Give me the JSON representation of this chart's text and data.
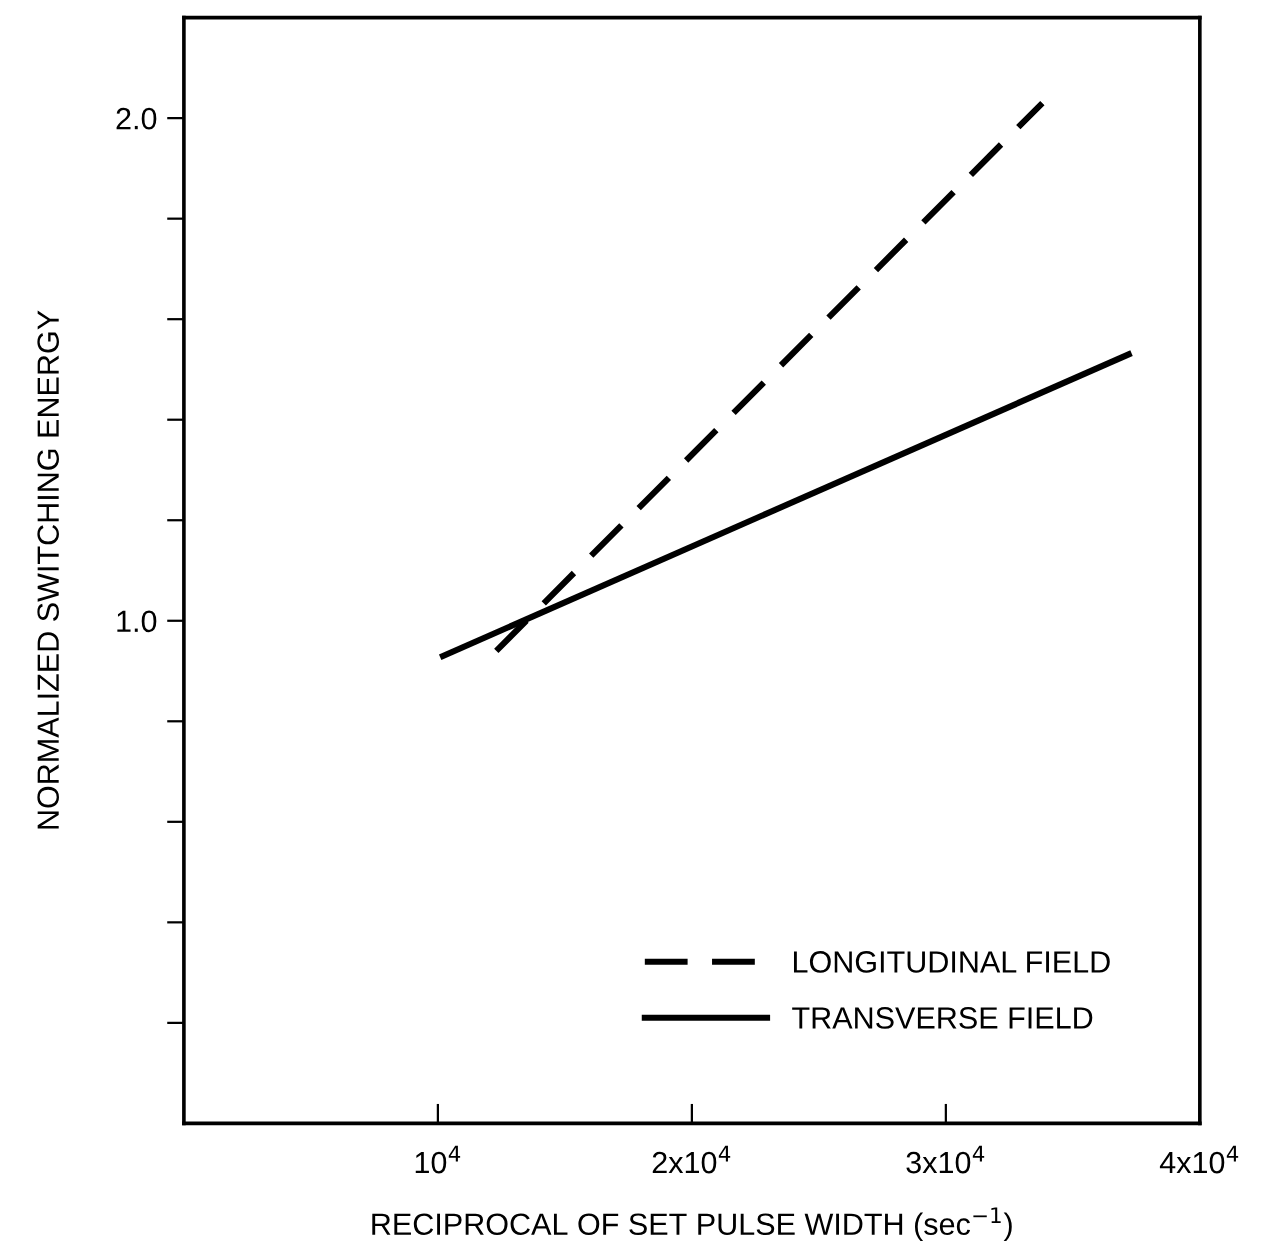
{
  "chart_data": {
    "type": "line",
    "xlabel": "RECIPROCAL OF SET PULSE WIDTH (sec$^{−1}$)",
    "ylabel": "NORMALIZED SWITCHING ENERGY",
    "series": [
      {
        "name": "LONGITUDINAL FIELD",
        "color": "#000000",
        "line_style": "dashed",
        "x": [
          12300,
          33800
        ],
        "values": [
          0.94,
          2.03
        ]
      },
      {
        "name": "TRANSVERSE FIELD",
        "color": "#000000",
        "line_style": "solid",
        "x": [
          10200,
          37200
        ],
        "values": [
          0.93,
          1.53
        ]
      }
    ],
    "xlim": [
      0,
      40000
    ],
    "xticks": [
      {
        "value": 10000,
        "label": "10$^{4}$"
      },
      {
        "value": 20000,
        "label": "2x10$^{4}$"
      },
      {
        "value": 30000,
        "label": "3x10$^{4}$"
      },
      {
        "value": 40000,
        "label": "4x10$^{4}$"
      }
    ],
    "ylim": [
      0,
      2.2
    ],
    "yticks": [
      {
        "value": 0.2,
        "label": null
      },
      {
        "value": 0.4,
        "label": null
      },
      {
        "value": 0.6,
        "label": null
      },
      {
        "value": 0.8,
        "label": null
      },
      {
        "value": 1.0,
        "label": "1.0"
      },
      {
        "value": 1.2,
        "label": null
      },
      {
        "value": 1.4,
        "label": null
      },
      {
        "value": 1.6,
        "label": null
      },
      {
        "value": 1.8,
        "label": null
      },
      {
        "value": 2.0,
        "label": "2.0"
      }
    ],
    "legend": "bottom right",
    "grid": false,
    "marker": "none"
  }
}
